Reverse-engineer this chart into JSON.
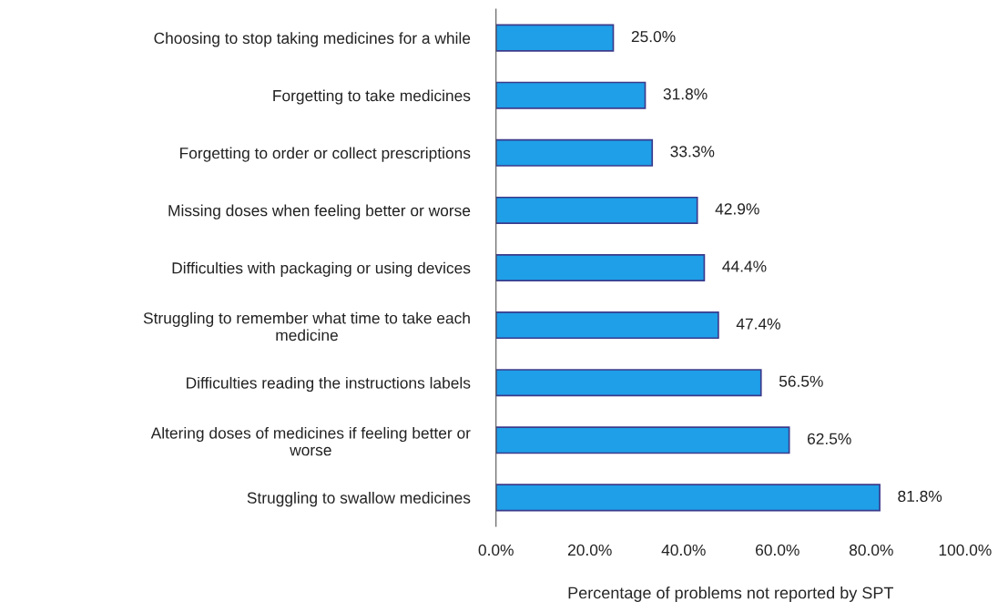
{
  "chart_data": {
    "type": "bar",
    "orientation": "horizontal",
    "xlabel": "Percentage of problems not reported by SPT",
    "categories": [
      "Choosing to stop taking medicines for a while",
      "Forgetting to take medicines",
      "Forgetting to order or collect prescriptions",
      "Missing doses when feeling better or worse",
      "Difficulties with packaging or using devices",
      "Struggling to remember what time to take each\nmedicine",
      "Difficulties reading the instructions labels",
      "Altering doses of medicines if feeling better or\nworse",
      "Struggling to swallow medicines"
    ],
    "values": [
      25.0,
      31.8,
      33.3,
      42.9,
      44.4,
      47.4,
      56.5,
      62.5,
      81.8
    ],
    "value_labels": [
      "25.0%",
      "31.8%",
      "33.3%",
      "42.9%",
      "44.4%",
      "47.4%",
      "56.5%",
      "62.5%",
      "81.8%"
    ],
    "color": "#1e9fe8",
    "xlim": [
      0,
      100
    ],
    "xticks": [
      {
        "value": 0,
        "label": "0.0%"
      },
      {
        "value": 20,
        "label": "20.0%"
      },
      {
        "value": 40,
        "label": "40.0%"
      },
      {
        "value": 60,
        "label": "60.0%"
      },
      {
        "value": 80,
        "label": "80.0%"
      },
      {
        "value": 100,
        "label": "100.0%"
      }
    ],
    "grid": false,
    "legend": false
  }
}
